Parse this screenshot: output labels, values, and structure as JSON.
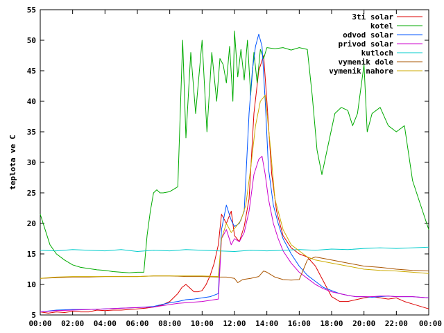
{
  "chart_data": {
    "type": "line",
    "title": "",
    "xlabel": "",
    "ylabel": "teplota ve C",
    "xlim": [
      0,
      24
    ],
    "ylim": [
      5,
      55
    ],
    "grid": false,
    "legend_position": "top-right",
    "x_ticks": [
      "00:00",
      "02:00",
      "04:00",
      "06:00",
      "08:00",
      "10:00",
      "12:00",
      "14:00",
      "16:00",
      "18:00",
      "20:00",
      "22:00",
      "00:00"
    ],
    "y_ticks": [
      "5",
      "10",
      "15",
      "20",
      "25",
      "30",
      "35",
      "40",
      "45",
      "50",
      "55"
    ],
    "series": [
      {
        "name": "3ti solar",
        "color": "#dd0000",
        "x": [
          0,
          0.5,
          1,
          1.5,
          2,
          2.5,
          3,
          3.5,
          4,
          4.5,
          5,
          5.5,
          6,
          6.5,
          7,
          7.5,
          8,
          8.5,
          8.75,
          9,
          9.25,
          9.5,
          9.75,
          10,
          10.25,
          10.5,
          10.75,
          11,
          11.2,
          11.5,
          11.8,
          12,
          12.3,
          12.6,
          12.9,
          13.2,
          13.5,
          13.8,
          14,
          14.3,
          14.6,
          15,
          15.5,
          16,
          16.5,
          17,
          17.5,
          18,
          18.5,
          19,
          19.5,
          20,
          20.5,
          21,
          21.5,
          22,
          22.5,
          23,
          23.5,
          24
        ],
        "y": [
          5.5,
          5.3,
          5.5,
          5.4,
          5.6,
          5.5,
          5.5,
          5.8,
          5.7,
          5.8,
          5.8,
          5.9,
          6.0,
          6.1,
          6.3,
          6.6,
          7.2,
          8.5,
          9.5,
          10.0,
          9.4,
          8.8,
          8.8,
          9.0,
          10.0,
          11.5,
          13.5,
          16.5,
          21.5,
          20.0,
          22.0,
          18.0,
          17.0,
          19.5,
          24.0,
          38.0,
          45.0,
          47.5,
          40.0,
          28.0,
          22.0,
          18.0,
          16.0,
          15.0,
          14.5,
          13.0,
          10.5,
          8.0,
          7.2,
          7.2,
          7.5,
          7.8,
          8.0,
          7.8,
          7.6,
          7.8,
          7.2,
          6.8,
          6.4,
          6.0
        ]
      },
      {
        "name": "kotel",
        "color": "#00aa00",
        "x": [
          0,
          0.3,
          0.6,
          1,
          1.5,
          2,
          2.5,
          3,
          3.5,
          4,
          4.5,
          5,
          5.5,
          6,
          6.4,
          6.6,
          6.8,
          7.0,
          7.2,
          7.4,
          7.6,
          8.0,
          8.5,
          8.8,
          9.0,
          9.3,
          9.6,
          10.0,
          10.3,
          10.6,
          10.9,
          11.1,
          11.3,
          11.5,
          11.7,
          11.9,
          12.0,
          12.2,
          12.4,
          12.6,
          12.8,
          13.0,
          13.2,
          13.4,
          13.6,
          13.8,
          14.0,
          14.5,
          15.0,
          15.5,
          16.0,
          16.5,
          16.8,
          17.1,
          17.4,
          17.8,
          18.2,
          18.6,
          19.0,
          19.3,
          19.6,
          20.0,
          20.2,
          20.5,
          21.0,
          21.5,
          22.0,
          22.5,
          23.0,
          23.5,
          24.0
        ],
        "y": [
          21.5,
          19.0,
          16.5,
          15.0,
          14.0,
          13.2,
          12.8,
          12.6,
          12.4,
          12.3,
          12.1,
          12.0,
          11.9,
          12.0,
          12.0,
          18.0,
          22.0,
          25.0,
          25.5,
          25.0,
          25.0,
          25.2,
          26.0,
          50.0,
          34.0,
          48.0,
          38.0,
          50.0,
          35.0,
          48.0,
          40.0,
          47.0,
          46.0,
          43.0,
          49.0,
          40.0,
          51.5,
          44.0,
          48.5,
          43.5,
          50.0,
          41.0,
          48.0,
          43.0,
          48.5,
          47.0,
          48.8,
          48.6,
          48.8,
          48.4,
          48.8,
          48.5,
          41.0,
          32.0,
          28.0,
          33.0,
          38.0,
          39.0,
          38.5,
          36.0,
          38.0,
          46.0,
          35.0,
          38.0,
          39.0,
          36.0,
          35.0,
          36.0,
          27.0,
          23.0,
          19.0
        ]
      },
      {
        "name": "odvod solar",
        "color": "#0055ff",
        "x": [
          0,
          1,
          2,
          3,
          4,
          5,
          6,
          7,
          7.5,
          8,
          8.5,
          9,
          9.5,
          10,
          10.5,
          11,
          11.2,
          11.5,
          11.8,
          12.0,
          12.3,
          12.6,
          12.9,
          13.1,
          13.3,
          13.5,
          13.7,
          13.9,
          14.1,
          14.4,
          14.7,
          15.0,
          15.5,
          16.0,
          16.5,
          17.0,
          17.5,
          18.0,
          18.5,
          19.0,
          19.5,
          20.0,
          20.5,
          21.0,
          21.5,
          22.0,
          22.5,
          23.0,
          23.5,
          24.0
        ],
        "y": [
          5.5,
          5.8,
          5.9,
          5.9,
          6.0,
          6.1,
          6.2,
          6.4,
          6.7,
          7.0,
          7.2,
          7.5,
          7.6,
          7.8,
          8.0,
          8.5,
          19.0,
          23.0,
          20.5,
          19.5,
          20.0,
          22.0,
          38.0,
          45.0,
          49.0,
          51.0,
          49.0,
          40.0,
          29.0,
          23.0,
          20.0,
          17.5,
          15.0,
          13.0,
          11.5,
          10.5,
          9.5,
          9.0,
          8.5,
          8.2,
          8.0,
          8.0,
          7.9,
          8.0,
          8.1,
          8.0,
          8.0,
          8.0,
          7.9,
          7.8
        ]
      },
      {
        "name": "privod solar",
        "color": "#cc00cc",
        "x": [
          0,
          1,
          2,
          3,
          4,
          5,
          6,
          7,
          7.5,
          8,
          8.5,
          9,
          9.5,
          10,
          10.5,
          11,
          11.2,
          11.5,
          11.8,
          12.0,
          12.3,
          12.6,
          12.9,
          13.2,
          13.5,
          13.7,
          13.9,
          14.1,
          14.4,
          14.7,
          15.0,
          15.5,
          16.0,
          16.5,
          17.0,
          17.5,
          18.0,
          18.5,
          19.0,
          19.5,
          20.0,
          20.5,
          21.0,
          21.5,
          22.0,
          22.5,
          23.0,
          23.5,
          24.0
        ],
        "y": [
          5.5,
          5.7,
          5.8,
          5.9,
          6.0,
          6.1,
          6.2,
          6.3,
          6.5,
          6.7,
          6.9,
          7.0,
          7.1,
          7.2,
          7.4,
          7.6,
          17.5,
          19.0,
          16.5,
          17.5,
          17.0,
          18.5,
          22.0,
          28.0,
          30.5,
          31.0,
          28.0,
          24.0,
          20.0,
          17.5,
          15.5,
          13.5,
          12.0,
          11.0,
          10.0,
          9.3,
          8.8,
          8.5,
          8.2,
          8.0,
          8.0,
          8.0,
          8.1,
          8.1,
          8.0,
          8.0,
          8.0,
          7.9,
          7.8
        ]
      },
      {
        "name": "kutloch",
        "color": "#00cccc",
        "x": [
          0,
          1,
          2,
          3,
          4,
          5,
          6,
          7,
          8,
          9,
          10,
          11,
          12,
          13,
          14,
          15,
          16,
          17,
          18,
          19,
          20,
          21,
          22,
          23,
          24
        ],
        "y": [
          15.6,
          15.5,
          15.7,
          15.6,
          15.5,
          15.7,
          15.4,
          15.6,
          15.5,
          15.7,
          15.6,
          15.5,
          15.4,
          15.6,
          15.5,
          15.6,
          15.7,
          15.6,
          15.8,
          15.7,
          15.9,
          16.0,
          15.9,
          16.0,
          16.1
        ]
      },
      {
        "name": "vymenik dole",
        "color": "#aa5500",
        "x": [
          0,
          1,
          2,
          3,
          4,
          5,
          6,
          7,
          8,
          9,
          10,
          11,
          11.5,
          12,
          12.2,
          12.5,
          13,
          13.5,
          13.8,
          14,
          14.5,
          15,
          15.5,
          16,
          16.5,
          17,
          18,
          19,
          20,
          21,
          22,
          23,
          24
        ],
        "y": [
          11.0,
          11.1,
          11.2,
          11.2,
          11.3,
          11.3,
          11.3,
          11.4,
          11.4,
          11.3,
          11.3,
          11.2,
          11.2,
          11.0,
          10.3,
          10.8,
          11.0,
          11.3,
          12.2,
          12.0,
          11.2,
          10.8,
          10.7,
          10.8,
          14.0,
          14.5,
          14.0,
          13.5,
          13.0,
          12.8,
          12.5,
          12.3,
          12.2
        ]
      },
      {
        "name": "vymenik nahore",
        "color": "#ccaa00",
        "x": [
          0,
          1,
          2,
          3,
          4,
          5,
          6,
          7,
          8,
          9,
          10,
          11,
          11.2,
          11.5,
          11.8,
          12.1,
          12.4,
          12.7,
          13.0,
          13.3,
          13.6,
          13.9,
          14.2,
          14.5,
          15.0,
          15.5,
          16.0,
          16.5,
          17,
          18,
          19,
          20,
          21,
          22,
          23,
          24
        ],
        "y": [
          11.0,
          11.2,
          11.3,
          11.3,
          11.3,
          11.3,
          11.3,
          11.4,
          11.4,
          11.4,
          11.4,
          11.3,
          17.5,
          20.0,
          18.5,
          19.5,
          20.5,
          23.0,
          29.0,
          36.0,
          40.0,
          41.0,
          33.0,
          24.0,
          19.0,
          16.5,
          15.5,
          14.5,
          14.0,
          13.5,
          13.0,
          12.5,
          12.3,
          12.2,
          12.0,
          11.8
        ]
      }
    ]
  }
}
